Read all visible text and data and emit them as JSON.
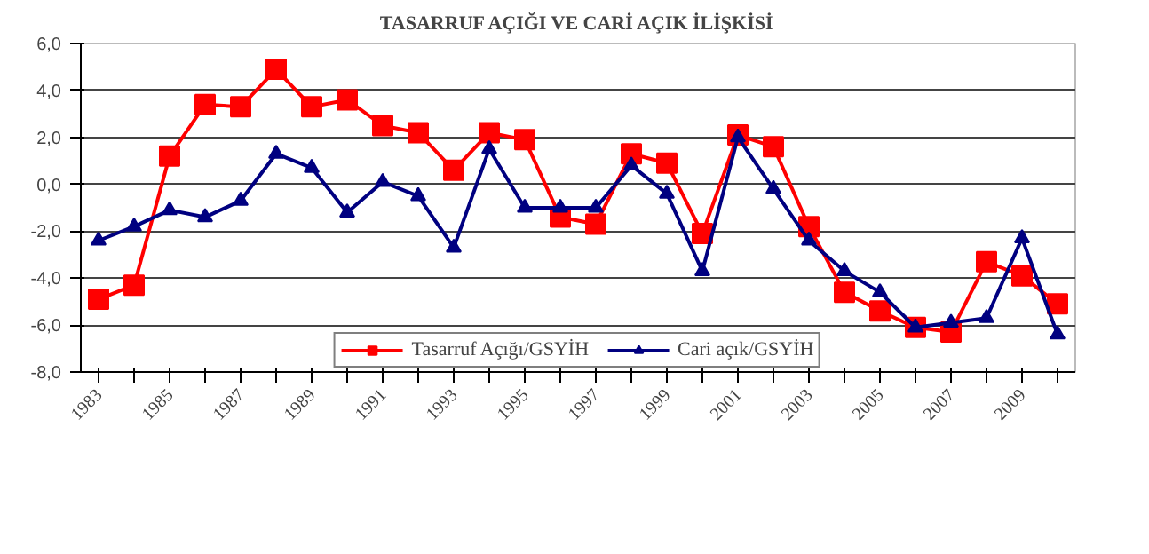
{
  "chart_data": {
    "type": "line",
    "title": "TASARRUF AÇIĞI VE CARİ AÇIK İLİŞKİSİ",
    "categories": [
      "1983",
      null,
      "1985",
      null,
      "1987",
      null,
      "1989",
      null,
      "1991",
      null,
      "1993",
      null,
      "1995",
      null,
      "1997",
      null,
      "1999",
      null,
      "2001",
      null,
      "2003",
      null,
      "2005",
      null,
      "2007",
      null,
      "2009",
      null
    ],
    "series": [
      {
        "name": "Tasarruf Açığı/GSYİH",
        "color": "#ff0000",
        "marker": "square",
        "values": [
          -4.9,
          -4.3,
          1.2,
          3.4,
          3.3,
          4.9,
          3.3,
          3.6,
          2.5,
          2.2,
          0.6,
          2.2,
          1.9,
          -1.4,
          -1.7,
          1.3,
          0.9,
          -2.1,
          2.1,
          1.6,
          -1.8,
          -4.6,
          -5.4,
          -6.1,
          -6.3,
          -3.3,
          -3.9,
          -5.1
        ]
      },
      {
        "name": "Cari açık/GSYİH",
        "color": "#000080",
        "marker": "triangle",
        "values": [
          -2.4,
          -1.8,
          -1.1,
          -1.4,
          -0.7,
          1.3,
          0.7,
          -1.2,
          0.1,
          -0.5,
          -2.7,
          1.5,
          -1.0,
          -1.0,
          -1.0,
          0.8,
          -0.4,
          -3.7,
          2.0,
          -0.2,
          -2.4,
          -3.7,
          -4.6,
          -6.1,
          -5.9,
          -5.7,
          -2.3,
          -6.4
        ]
      }
    ],
    "ylim": [
      -8,
      6
    ],
    "yticks": [
      {
        "value": -8,
        "label": "-8,0"
      },
      {
        "value": -6,
        "label": "-6,0"
      },
      {
        "value": -4,
        "label": "-4,0"
      },
      {
        "value": -2,
        "label": "-2,0"
      },
      {
        "value": 0,
        "label": "0,0"
      },
      {
        "value": 2,
        "label": "2,0"
      },
      {
        "value": 4,
        "label": "4,0"
      },
      {
        "value": 6,
        "label": "6,0"
      }
    ],
    "grid": "y",
    "legend": "bottom",
    "line_style": "solid"
  }
}
